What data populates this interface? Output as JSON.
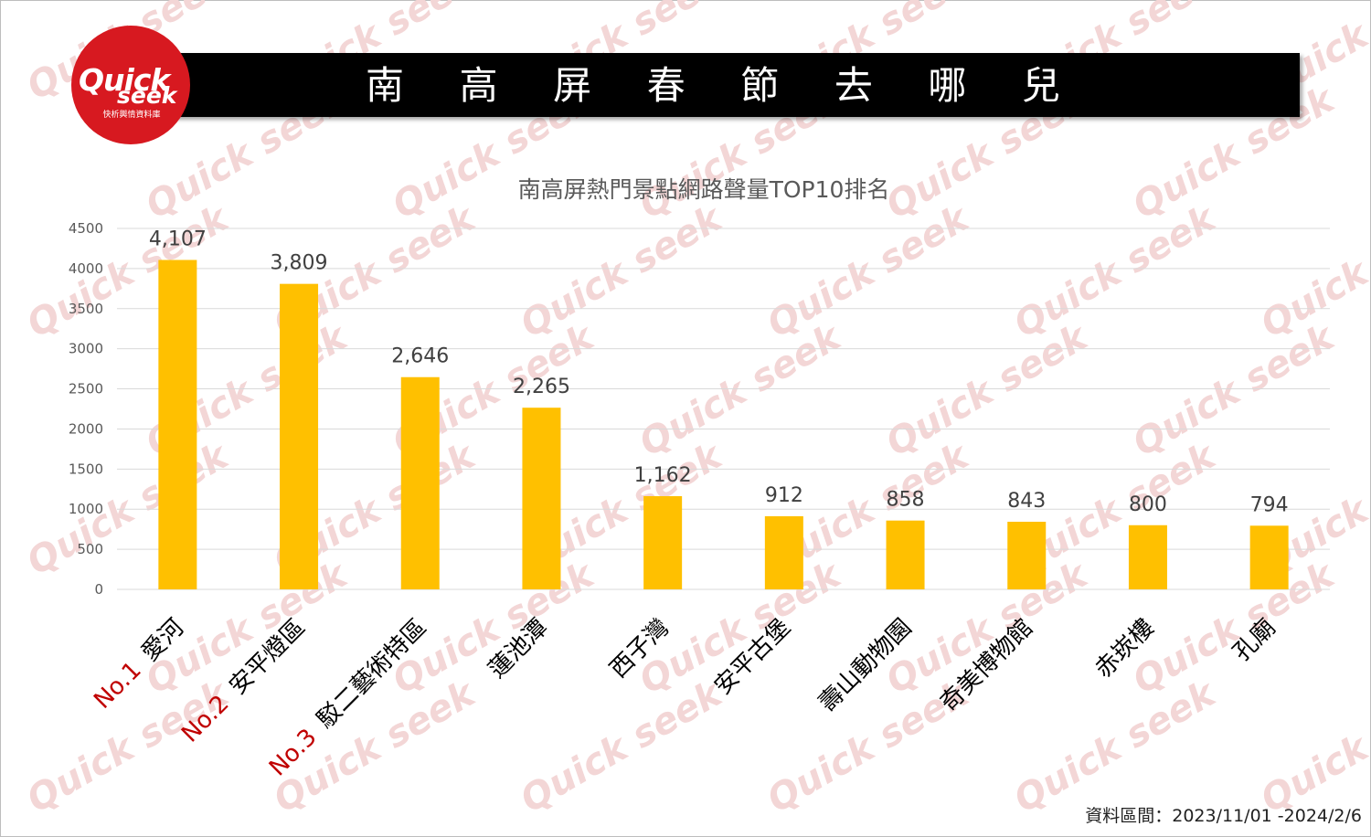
{
  "header": {
    "title_chars": [
      "南",
      "高",
      "屏",
      "春",
      "節",
      "去",
      "哪",
      "兒"
    ],
    "logo_quick": "Quick",
    "logo_seek": "seek",
    "logo_subtitle": "快析輿情資料庫",
    "watermark_text": "Quick seek"
  },
  "source_note": "資料區間：2023/11/01 -2024/2/6",
  "chart_data": {
    "type": "bar",
    "title": "南高屏熱門景點網路聲量TOP10排名",
    "categories": [
      "愛河",
      "安平燈區",
      "駁二藝術特區",
      "蓮池潭",
      "西子灣",
      "安平古堡",
      "壽山動物園",
      "奇美博物館",
      "赤崁樓",
      "孔廟"
    ],
    "values": [
      4107,
      3809,
      2646,
      2265,
      1162,
      912,
      858,
      843,
      800,
      794
    ],
    "value_labels": [
      "4,107",
      "3,809",
      "2,646",
      "2,265",
      "1,162",
      "912",
      "858",
      "843",
      "800",
      "794"
    ],
    "rank_labels": [
      "No.1",
      "No.2",
      "No.3"
    ],
    "ylim": [
      0,
      4500
    ],
    "yticks": [
      0,
      500,
      1000,
      1500,
      2000,
      2500,
      3000,
      3500,
      4000,
      4500
    ],
    "xlabel": "",
    "ylabel": "",
    "grid": true,
    "colors": {
      "bar": "#ffc000",
      "rank": "#c00000",
      "grid": "#d9d9d9"
    }
  }
}
